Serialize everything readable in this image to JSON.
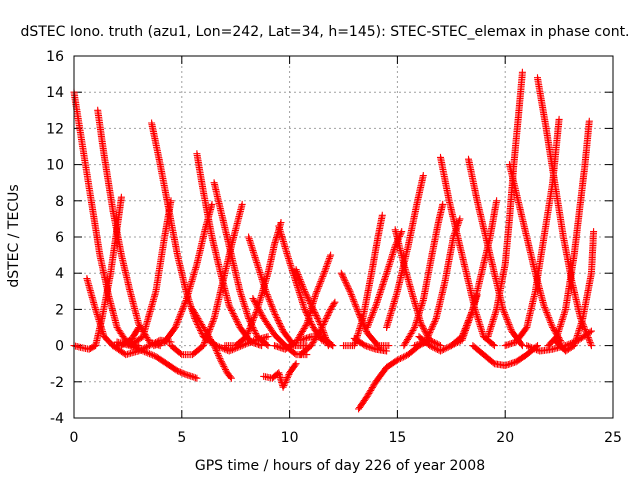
{
  "chart_data": {
    "type": "scatter",
    "title": "dSTEC Iono. truth (azu1, Lon=242, Lat=34, h=145): STEC-STEC_elemax in phase cont.",
    "xlabel": "GPS time / hours of day 226 of year 2008",
    "ylabel": "dSTEC  / TECUs",
    "xlim": [
      0,
      25
    ],
    "ylim": [
      -4,
      16
    ],
    "x_ticks": [
      0,
      5,
      10,
      15,
      20,
      25
    ],
    "y_ticks": [
      -4,
      -2,
      0,
      2,
      4,
      6,
      8,
      10,
      12,
      14,
      16
    ],
    "grid": true,
    "marker": "+",
    "series_color": "#ff0000",
    "arcs": [
      [
        [
          0.0,
          14.0
        ],
        [
          0.4,
          11.0
        ],
        [
          0.8,
          8.0
        ],
        [
          1.2,
          5.0
        ],
        [
          1.6,
          2.8
        ],
        [
          2.0,
          1.0
        ],
        [
          2.5,
          0.1
        ],
        [
          3.0,
          0.0
        ]
      ],
      [
        [
          0.0,
          0.0
        ],
        [
          0.3,
          -0.1
        ],
        [
          0.7,
          -0.2
        ],
        [
          1.0,
          0.0
        ],
        [
          1.3,
          1.5
        ],
        [
          1.7,
          4.0
        ],
        [
          2.0,
          6.5
        ],
        [
          2.2,
          8.2
        ]
      ],
      [
        [
          0.6,
          3.7
        ],
        [
          1.0,
          2.0
        ],
        [
          1.4,
          0.5
        ],
        [
          1.8,
          0.0
        ],
        [
          2.2,
          0.0
        ],
        [
          2.7,
          0.4
        ],
        [
          3.0,
          1.0
        ]
      ],
      [
        [
          1.1,
          13.0
        ],
        [
          1.4,
          10.5
        ],
        [
          1.8,
          7.5
        ],
        [
          2.2,
          5.0
        ],
        [
          2.6,
          3.0
        ],
        [
          3.0,
          1.2
        ],
        [
          3.5,
          0.2
        ],
        [
          4.0,
          0.0
        ]
      ],
      [
        [
          1.8,
          0.0
        ],
        [
          2.4,
          -0.5
        ],
        [
          3.0,
          -0.3
        ],
        [
          3.5,
          0.0
        ],
        [
          4.0,
          0.3
        ],
        [
          4.5,
          0.2
        ]
      ],
      [
        [
          2.0,
          0.2
        ],
        [
          2.6,
          0.0
        ],
        [
          3.2,
          0.5
        ],
        [
          3.8,
          3.0
        ],
        [
          4.2,
          6.0
        ],
        [
          4.5,
          8.0
        ]
      ],
      [
        [
          3.6,
          12.3
        ],
        [
          4.0,
          10.0
        ],
        [
          4.4,
          7.5
        ],
        [
          4.8,
          5.0
        ],
        [
          5.2,
          3.0
        ],
        [
          5.6,
          1.5
        ],
        [
          6.0,
          0.5
        ],
        [
          6.6,
          0.0
        ]
      ],
      [
        [
          2.6,
          0.0
        ],
        [
          3.2,
          -0.3
        ],
        [
          3.8,
          -0.6
        ],
        [
          4.3,
          -1.0
        ],
        [
          4.8,
          -1.4
        ],
        [
          5.2,
          -1.6
        ],
        [
          5.7,
          -1.8
        ]
      ],
      [
        [
          3.7,
          0.0
        ],
        [
          4.2,
          0.2
        ],
        [
          4.7,
          1.0
        ],
        [
          5.2,
          2.5
        ],
        [
          5.7,
          4.5
        ],
        [
          6.1,
          6.5
        ],
        [
          6.4,
          7.8
        ]
      ],
      [
        [
          5.7,
          10.6
        ],
        [
          6.0,
          8.5
        ],
        [
          6.4,
          6.0
        ],
        [
          6.8,
          4.0
        ],
        [
          7.2,
          2.2
        ],
        [
          7.7,
          1.0
        ],
        [
          8.2,
          0.2
        ],
        [
          8.7,
          0.0
        ]
      ],
      [
        [
          4.5,
          0.0
        ],
        [
          5.0,
          -0.5
        ],
        [
          5.5,
          -0.5
        ],
        [
          6.0,
          0.0
        ],
        [
          6.5,
          1.5
        ],
        [
          6.9,
          3.5
        ],
        [
          7.3,
          5.5
        ],
        [
          7.8,
          7.8
        ]
      ],
      [
        [
          6.5,
          9.0
        ],
        [
          6.9,
          7.0
        ],
        [
          7.3,
          5.0
        ],
        [
          7.7,
          3.0
        ],
        [
          8.1,
          1.5
        ],
        [
          8.5,
          0.5
        ],
        [
          9.0,
          0.0
        ]
      ],
      [
        [
          5.5,
          2.0
        ],
        [
          6.0,
          1.0
        ],
        [
          6.5,
          0.0
        ],
        [
          6.8,
          -0.8
        ],
        [
          7.1,
          -1.5
        ],
        [
          7.3,
          -1.8
        ]
      ],
      [
        [
          8.1,
          6.0
        ],
        [
          8.5,
          4.5
        ],
        [
          8.9,
          3.0
        ],
        [
          9.3,
          1.8
        ],
        [
          9.7,
          0.8
        ],
        [
          10.2,
          0.0
        ],
        [
          10.8,
          0.0
        ]
      ],
      [
        [
          7.0,
          0.0
        ],
        [
          7.5,
          0.0
        ],
        [
          8.0,
          0.5
        ],
        [
          8.5,
          2.0
        ],
        [
          9.0,
          4.0
        ],
        [
          9.3,
          5.6
        ],
        [
          9.6,
          6.8
        ]
      ],
      [
        [
          6.0,
          0.5
        ],
        [
          6.6,
          0.0
        ],
        [
          7.2,
          -0.3
        ],
        [
          7.8,
          0.0
        ],
        [
          8.4,
          0.3
        ],
        [
          9.0,
          0.5
        ]
      ],
      [
        [
          9.5,
          6.6
        ],
        [
          9.9,
          5.0
        ],
        [
          10.3,
          3.5
        ],
        [
          10.7,
          2.0
        ],
        [
          11.1,
          1.0
        ],
        [
          11.5,
          0.3
        ],
        [
          12.0,
          0.0
        ]
      ],
      [
        [
          8.8,
          -1.7
        ],
        [
          9.2,
          -1.8
        ],
        [
          9.5,
          -1.5
        ],
        [
          9.7,
          -2.3
        ],
        [
          10.0,
          -1.5
        ],
        [
          10.3,
          -1.0
        ]
      ],
      [
        [
          9.3,
          0.0
        ],
        [
          9.8,
          -0.2
        ],
        [
          10.3,
          0.2
        ],
        [
          10.8,
          1.2
        ],
        [
          11.2,
          2.8
        ],
        [
          11.6,
          4.0
        ],
        [
          11.9,
          5.0
        ]
      ],
      [
        [
          8.3,
          2.6
        ],
        [
          8.8,
          1.5
        ],
        [
          9.3,
          0.6
        ],
        [
          9.8,
          0.0
        ],
        [
          10.3,
          -0.5
        ],
        [
          10.8,
          -0.5
        ]
      ],
      [
        [
          10.3,
          4.2
        ],
        [
          10.7,
          3.0
        ],
        [
          11.1,
          2.0
        ],
        [
          11.5,
          1.0
        ],
        [
          11.8,
          0.0
        ]
      ],
      [
        [
          10.5,
          -0.5
        ],
        [
          11.0,
          0.0
        ],
        [
          11.5,
          1.0
        ],
        [
          11.9,
          2.0
        ],
        [
          12.1,
          2.4
        ]
      ],
      [
        [
          10.5,
          0.3
        ],
        [
          11.0,
          0.5
        ],
        [
          11.5,
          0.5
        ],
        [
          12.0,
          0.0
        ]
      ],
      [
        [
          12.4,
          4.0
        ],
        [
          12.8,
          3.0
        ],
        [
          13.2,
          1.8
        ],
        [
          13.6,
          0.7
        ],
        [
          14.1,
          0.0
        ],
        [
          14.6,
          0.0
        ]
      ],
      [
        [
          12.5,
          0.0
        ],
        [
          13.0,
          0.0
        ],
        [
          13.4,
          1.5
        ],
        [
          13.8,
          4.0
        ],
        [
          14.1,
          6.0
        ],
        [
          14.3,
          7.2
        ]
      ],
      [
        [
          13.0,
          0.4
        ],
        [
          13.5,
          0.0
        ],
        [
          14.0,
          -0.2
        ],
        [
          14.5,
          -0.3
        ]
      ],
      [
        [
          13.2,
          -3.5
        ],
        [
          13.6,
          -2.8
        ],
        [
          14.0,
          -2.0
        ],
        [
          14.5,
          -1.2
        ],
        [
          15.0,
          -0.8
        ],
        [
          15.5,
          -0.5
        ],
        [
          16.0,
          0.0
        ],
        [
          16.5,
          0.3
        ]
      ],
      [
        [
          13.6,
          1.0
        ],
        [
          14.0,
          2.2
        ],
        [
          14.5,
          4.0
        ],
        [
          14.9,
          5.5
        ],
        [
          15.2,
          6.3
        ]
      ],
      [
        [
          14.5,
          1.0
        ],
        [
          15.0,
          3.0
        ],
        [
          15.5,
          5.5
        ],
        [
          15.9,
          7.8
        ],
        [
          16.2,
          9.4
        ]
      ],
      [
        [
          14.9,
          6.4
        ],
        [
          15.3,
          4.5
        ],
        [
          15.7,
          2.8
        ],
        [
          16.1,
          1.2
        ],
        [
          16.5,
          0.3
        ],
        [
          17.0,
          0.0
        ]
      ],
      [
        [
          15.3,
          0.0
        ],
        [
          15.8,
          1.0
        ],
        [
          16.2,
          2.5
        ],
        [
          16.6,
          5.0
        ],
        [
          16.9,
          6.8
        ],
        [
          17.1,
          7.8
        ]
      ],
      [
        [
          15.8,
          0.0
        ],
        [
          16.3,
          0.2
        ],
        [
          16.8,
          1.5
        ],
        [
          17.2,
          3.5
        ],
        [
          17.6,
          6.0
        ],
        [
          17.9,
          7.0
        ]
      ],
      [
        [
          17.0,
          10.4
        ],
        [
          17.4,
          8.0
        ],
        [
          17.8,
          6.0
        ],
        [
          18.2,
          4.0
        ],
        [
          18.6,
          2.0
        ],
        [
          19.0,
          0.5
        ],
        [
          19.5,
          0.0
        ]
      ],
      [
        [
          16.0,
          0.5
        ],
        [
          16.5,
          0.0
        ],
        [
          17.0,
          -0.3
        ],
        [
          17.5,
          0.0
        ],
        [
          18.0,
          0.5
        ],
        [
          18.5,
          2.0
        ],
        [
          18.7,
          2.8
        ]
      ],
      [
        [
          17.5,
          0.0
        ],
        [
          18.0,
          0.3
        ],
        [
          18.5,
          2.0
        ],
        [
          19.0,
          4.5
        ],
        [
          19.3,
          6.0
        ],
        [
          19.6,
          8.0
        ]
      ],
      [
        [
          18.3,
          10.3
        ],
        [
          18.7,
          8.0
        ],
        [
          19.1,
          6.0
        ],
        [
          19.5,
          4.0
        ],
        [
          19.9,
          2.0
        ],
        [
          20.3,
          0.8
        ],
        [
          20.8,
          0.0
        ]
      ],
      [
        [
          18.5,
          0.0
        ],
        [
          19.0,
          -0.5
        ],
        [
          19.5,
          -1.0
        ],
        [
          20.0,
          -1.1
        ],
        [
          20.5,
          -0.9
        ],
        [
          21.0,
          -0.5
        ],
        [
          21.5,
          0.0
        ]
      ],
      [
        [
          19.2,
          0.5
        ],
        [
          19.6,
          2.0
        ],
        [
          20.0,
          4.5
        ],
        [
          20.2,
          7.0
        ],
        [
          20.4,
          10.0
        ],
        [
          20.6,
          12.5
        ],
        [
          20.8,
          15.1
        ]
      ],
      [
        [
          20.2,
          10.0
        ],
        [
          20.6,
          8.0
        ],
        [
          21.0,
          6.0
        ],
        [
          21.4,
          4.0
        ],
        [
          21.8,
          2.2
        ],
        [
          22.2,
          1.0
        ],
        [
          22.6,
          0.2
        ]
      ],
      [
        [
          20.0,
          0.0
        ],
        [
          20.5,
          0.2
        ],
        [
          21.0,
          1.0
        ],
        [
          21.4,
          3.0
        ],
        [
          21.8,
          6.0
        ],
        [
          22.2,
          9.0
        ],
        [
          22.5,
          12.5
        ]
      ],
      [
        [
          21.5,
          14.8
        ],
        [
          21.9,
          12.0
        ],
        [
          22.3,
          9.0
        ],
        [
          22.7,
          6.0
        ],
        [
          23.1,
          3.5
        ],
        [
          23.5,
          1.5
        ],
        [
          24.0,
          0.0
        ]
      ],
      [
        [
          22.0,
          0.0
        ],
        [
          22.4,
          0.5
        ],
        [
          22.8,
          2.0
        ],
        [
          23.2,
          5.0
        ],
        [
          23.5,
          8.0
        ],
        [
          23.7,
          10.0
        ],
        [
          23.9,
          12.4
        ]
      ],
      [
        [
          21.0,
          0.0
        ],
        [
          21.6,
          -0.3
        ],
        [
          22.2,
          -0.2
        ],
        [
          22.8,
          0.0
        ],
        [
          23.4,
          0.3
        ],
        [
          24.0,
          0.8
        ]
      ],
      [
        [
          22.3,
          0.3
        ],
        [
          22.8,
          -0.3
        ],
        [
          23.2,
          0.0
        ],
        [
          23.6,
          1.5
        ],
        [
          24.0,
          4.0
        ],
        [
          24.1,
          6.3
        ]
      ]
    ]
  }
}
